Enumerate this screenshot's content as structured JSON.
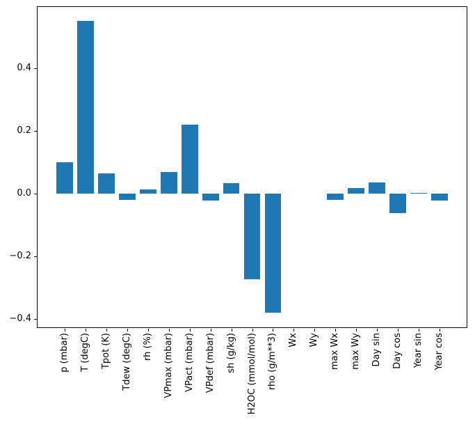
{
  "chart_data": {
    "type": "bar",
    "title": "",
    "xlabel": "",
    "ylabel": "",
    "grid": false,
    "legend": null,
    "bar_color": "#1f77b4",
    "axis_color": "#000000",
    "background_color": "#ffffff",
    "categories": [
      "p (mbar)",
      "T (degC)",
      "Tpot (K)",
      "Tdew (degC)",
      "rh (%)",
      "VPmax (mbar)",
      "VPact (mbar)",
      "VPdef (mbar)",
      "sh (g/kg)",
      "H2OC (mmol/mol)",
      "rho (g/m**3)",
      "Wx",
      "Wy",
      "max Wx",
      "max Wy",
      "Day sin",
      "Day cos",
      "Year sin",
      "Year cos"
    ],
    "values": [
      0.101,
      0.552,
      0.066,
      -0.02,
      0.014,
      0.069,
      0.221,
      -0.023,
      0.035,
      -0.273,
      -0.381,
      0.0,
      0.0,
      -0.02,
      0.018,
      0.036,
      -0.063,
      0.003,
      -0.022
    ],
    "ylim": [
      -0.429,
      0.599
    ],
    "yticks": [
      {
        "value": 0.4,
        "label": "0.4"
      },
      {
        "value": 0.2,
        "label": "0.2"
      },
      {
        "value": 0.0,
        "label": "0.0"
      },
      {
        "value": -0.2,
        "label": "−0.2"
      },
      {
        "value": -0.4,
        "label": "−0.4"
      }
    ],
    "bar_width_fraction": 0.8,
    "legend_position": "none"
  }
}
